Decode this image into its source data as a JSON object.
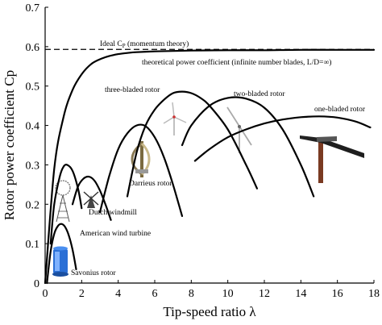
{
  "chart_data": {
    "type": "line",
    "xlabel": "Tip-speed ratio λ",
    "ylabel": "Rotor power coefficient Cp",
    "xlim": [
      0,
      18
    ],
    "ylim": [
      0,
      0.7
    ],
    "x_ticks": [
      "0",
      "2",
      "4",
      "6",
      "8",
      "10",
      "12",
      "14",
      "16",
      "18"
    ],
    "y_ticks": [
      "0",
      "0.1",
      "0.2",
      "0.3",
      "0.4",
      "0.5",
      "0.6",
      "0.7"
    ],
    "grid": false,
    "reference_lines": [
      {
        "name": "Ideal Cp (momentum theory)",
        "y": 0.593,
        "style": "dashed"
      }
    ],
    "series": [
      {
        "name": "theoretical power coefficient (infinite number blades, L/D=∞)",
        "x": [
          0,
          0.5,
          1,
          1.5,
          2,
          2.5,
          3,
          3.5,
          4,
          4.5,
          5,
          6,
          7,
          8,
          10,
          12,
          14,
          16,
          18
        ],
        "y": [
          0,
          0.29,
          0.42,
          0.49,
          0.53,
          0.555,
          0.568,
          0.576,
          0.581,
          0.584,
          0.586,
          0.588,
          0.589,
          0.59,
          0.591,
          0.591,
          0.592,
          0.592,
          0.592
        ]
      },
      {
        "name": "Savonius rotor",
        "x": [
          0.1,
          0.3,
          0.5,
          0.7,
          0.9,
          1.1,
          1.3,
          1.5,
          1.7
        ],
        "y": [
          0.0,
          0.08,
          0.125,
          0.145,
          0.15,
          0.142,
          0.12,
          0.085,
          0.035
        ]
      },
      {
        "name": "American wind turbine",
        "x": [
          0.3,
          0.5,
          0.8,
          1.0,
          1.2,
          1.5,
          1.8,
          2.0
        ],
        "y": [
          0.1,
          0.2,
          0.27,
          0.295,
          0.3,
          0.285,
          0.24,
          0.19
        ]
      },
      {
        "name": "Dutch windmill",
        "x": [
          1.5,
          1.8,
          2.1,
          2.4,
          2.7,
          3.0,
          3.3,
          3.6
        ],
        "y": [
          0.2,
          0.245,
          0.265,
          0.27,
          0.26,
          0.235,
          0.2,
          0.16
        ]
      },
      {
        "name": "Darrieus rotor",
        "x": [
          3.0,
          3.5,
          4.0,
          4.5,
          5.0,
          5.5,
          6.0,
          6.5,
          7.0,
          7.5
        ],
        "y": [
          0.18,
          0.27,
          0.34,
          0.38,
          0.4,
          0.398,
          0.37,
          0.32,
          0.25,
          0.17
        ]
      },
      {
        "name": "three-bladed rotor",
        "x": [
          4.5,
          5.0,
          5.5,
          6.0,
          6.5,
          7.0,
          7.5,
          8.0,
          8.5,
          9.0,
          10.0,
          11.0,
          11.6
        ],
        "y": [
          0.22,
          0.33,
          0.4,
          0.44,
          0.465,
          0.482,
          0.486,
          0.482,
          0.47,
          0.45,
          0.39,
          0.3,
          0.24
        ]
      },
      {
        "name": "two-bladed rotor",
        "x": [
          7.5,
          8.0,
          9.0,
          10.0,
          11.0,
          12.0,
          13.0,
          14.0,
          14.7
        ],
        "y": [
          0.35,
          0.4,
          0.45,
          0.47,
          0.468,
          0.445,
          0.39,
          0.3,
          0.22
        ]
      },
      {
        "name": "one-bladed rotor",
        "x": [
          8.2,
          9.0,
          10.0,
          11.0,
          12.0,
          13.0,
          14.0,
          15.0,
          16.0,
          17.0,
          17.8
        ],
        "y": [
          0.31,
          0.34,
          0.37,
          0.39,
          0.405,
          0.415,
          0.421,
          0.423,
          0.42,
          0.41,
          0.395
        ]
      }
    ],
    "annotations": [
      {
        "text": "Ideal C",
        "subscript": "P",
        "suffix": " (momentum theory)"
      },
      {
        "text": "theoretical power coefficient (infinite number blades, L/D=∞)"
      },
      {
        "text": "three-bladed rotor"
      },
      {
        "text": "two-bladed rotor"
      },
      {
        "text": "one-bladed rotor"
      },
      {
        "text": "Darrieus rotor"
      },
      {
        "text": "Dutch windmill"
      },
      {
        "text": "American wind turbine"
      },
      {
        "text": "Savonius rotor"
      }
    ]
  }
}
